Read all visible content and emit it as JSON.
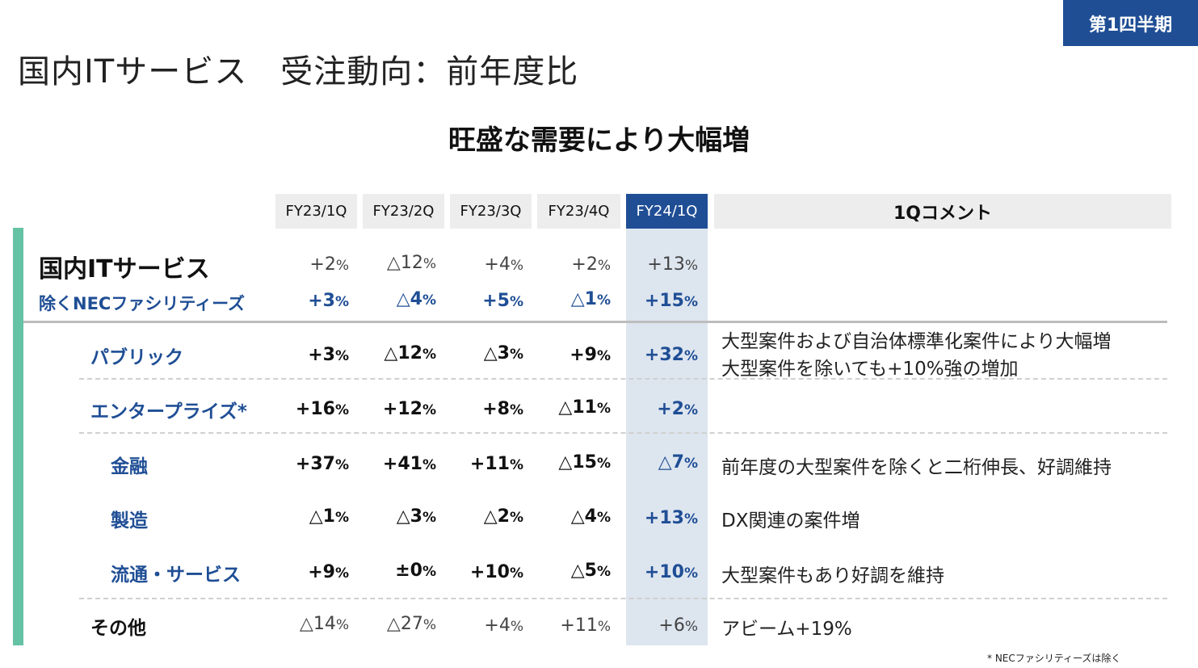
{
  "badge": "第1四半期",
  "title": "国内ITサービス　受注動向：前年度比",
  "subtitle": "旺盛な需要により大幅増",
  "headers": [
    "FY23/1Q",
    "FY23/2Q",
    "FY23/3Q",
    "FY23/4Q",
    "FY24/1Q"
  ],
  "comment_header": "1Qコメント",
  "rows": [
    {
      "label": "国内ITサービス",
      "values": [
        "+2",
        "△12",
        "+4",
        "+2",
        "+13"
      ],
      "unit": "%",
      "comment": ""
    },
    {
      "label": "除くNECファシリティーズ",
      "values": [
        "+3",
        "△4",
        "+5",
        "△1",
        "+15"
      ],
      "unit": "%",
      "comment": ""
    },
    {
      "label": "パブリック",
      "values": [
        "+3",
        "△12",
        "△3",
        "+9",
        "+32"
      ],
      "unit": "%",
      "comment_lines": [
        "大型案件および自治体標準化案件により大幅増",
        "大型案件を除いても+10%強の増加"
      ]
    },
    {
      "label": "エンタープライズ*",
      "values": [
        "+16",
        "+12",
        "+8",
        "△11",
        "+2"
      ],
      "unit": "%",
      "comment": ""
    },
    {
      "label": "金融",
      "values": [
        "+37",
        "+41",
        "+11",
        "△15",
        "△7"
      ],
      "unit": "%",
      "comment": "前年度の大型案件を除くと二桁伸長、好調維持"
    },
    {
      "label": "製造",
      "values": [
        "△1",
        "△3",
        "△2",
        "△4",
        "+13"
      ],
      "unit": "%",
      "comment": "DX関連の案件増"
    },
    {
      "label": "流通・サービス",
      "values": [
        "+9",
        "±0",
        "+10",
        "△5",
        "+10"
      ],
      "unit": "%",
      "comment": "大型案件もあり好調を維持"
    },
    {
      "label": "その他",
      "values": [
        "△14",
        "△27",
        "+4",
        "+11",
        "+6"
      ],
      "unit": "%",
      "comment": "アビーム+19%"
    }
  ],
  "footnote": "* NECファシリティーズは除く",
  "colors": {
    "accent_blue": "#1f4e95",
    "green_bar": "#66c2a4",
    "highlight_col": "#dde5ef",
    "header_gray": "#ededed"
  }
}
